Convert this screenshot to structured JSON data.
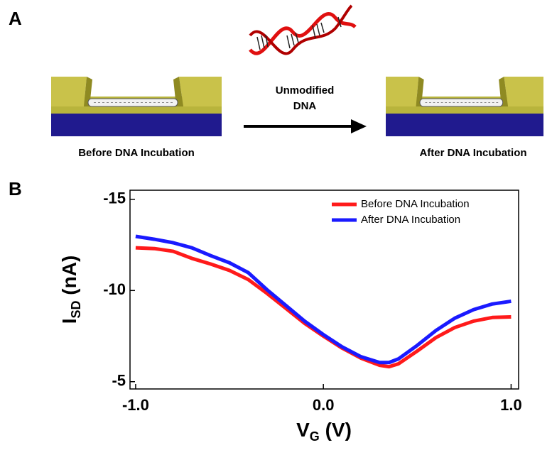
{
  "panel_a": {
    "label": "A",
    "arrow_label": [
      "Unmodified",
      "DNA"
    ],
    "left_caption": "Before DNA Incubation",
    "right_caption": "After DNA Incubation"
  },
  "chart_data": {
    "type": "line",
    "panel_label": "B",
    "xlabel": [
      "V",
      "G",
      " (V)"
    ],
    "ylabel": [
      "I",
      "SD",
      " (nA)"
    ],
    "x": [
      -1.0,
      -0.9,
      -0.8,
      -0.7,
      -0.6,
      -0.5,
      -0.4,
      -0.3,
      -0.2,
      -0.1,
      0.0,
      0.1,
      0.2,
      0.3,
      0.35,
      0.4,
      0.5,
      0.6,
      0.7,
      0.8,
      0.9,
      1.0
    ],
    "series": [
      {
        "name": "Before DNA Incubation",
        "color": "#ff1a1a",
        "values": [
          -12.34,
          -12.3,
          -12.15,
          -11.76,
          -11.45,
          -11.1,
          -10.6,
          -9.84,
          -9.02,
          -8.2,
          -7.5,
          -6.84,
          -6.29,
          -5.9,
          -5.82,
          -5.98,
          -6.68,
          -7.42,
          -7.97,
          -8.32,
          -8.52,
          -8.55
        ]
      },
      {
        "name": "After DNA Incubation",
        "color": "#1a1aff",
        "values": [
          -12.97,
          -12.81,
          -12.62,
          -12.34,
          -11.91,
          -11.52,
          -10.98,
          -10.04,
          -9.18,
          -8.32,
          -7.58,
          -6.91,
          -6.37,
          -6.05,
          -6.05,
          -6.25,
          -6.99,
          -7.81,
          -8.48,
          -8.95,
          -9.26,
          -9.41
        ]
      }
    ],
    "xlim": [
      -1.03,
      1.04
    ],
    "xticks": [
      {
        "value": -1.0,
        "label": "-1.0"
      },
      {
        "value": 0.0,
        "label": "0.0"
      },
      {
        "value": 1.0,
        "label": "1.0"
      }
    ],
    "ylim": [
      -4.6,
      -15.5
    ],
    "yticks": [
      -15,
      -10,
      -5
    ],
    "legend": "upper right"
  }
}
